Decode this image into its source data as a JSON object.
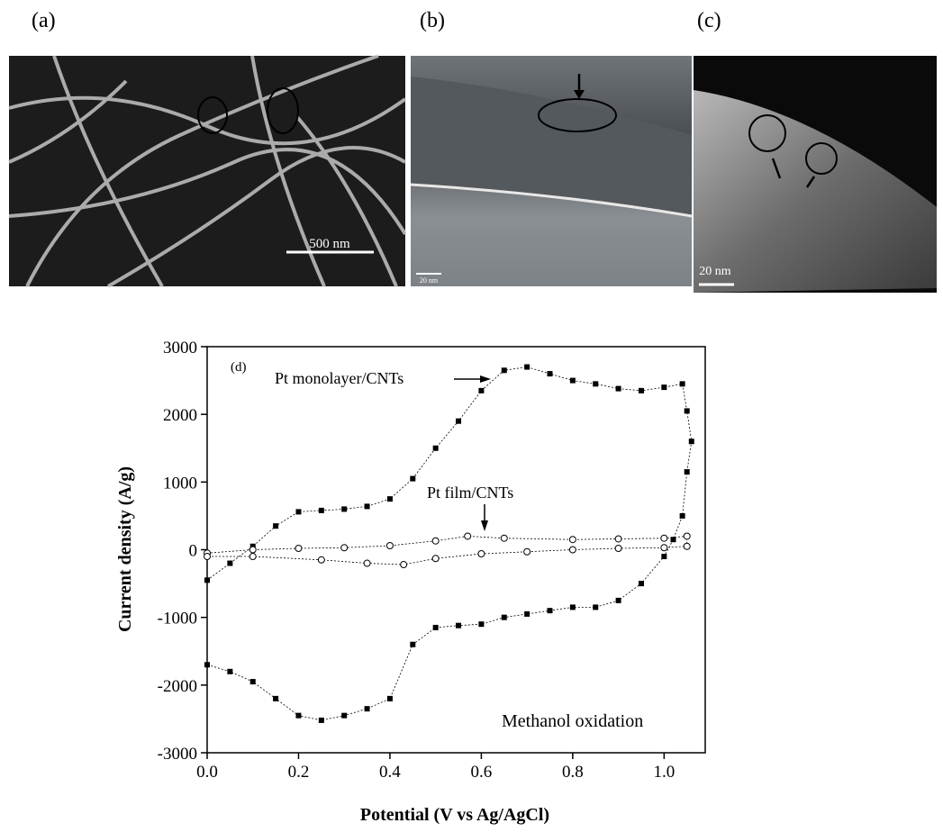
{
  "panels": [
    {
      "label": "(a)",
      "scale_bar": "500 nm"
    },
    {
      "label": "(b)",
      "scale_bar": "20 nm"
    },
    {
      "label": "(c)",
      "scale_bar": "20 nm"
    }
  ],
  "chart_data": {
    "type": "scatter",
    "panel_label": "(d)",
    "x_label": "Potential (V vs Ag/AgCl)",
    "y_label": "Current density (A/g)",
    "xlim": [
      0,
      1.09
    ],
    "ylim": [
      -3000,
      3000
    ],
    "xticks": [
      {
        "value": 0,
        "label": "0.0"
      },
      0.2,
      0.4,
      0.6,
      0.8,
      {
        "value": 1,
        "label": "1.0"
      }
    ],
    "yticks": [
      -3000,
      -2000,
      -1000,
      0,
      1000,
      2000,
      3000
    ],
    "annotations": [
      "Pt monolayer/CNTs",
      "Pt film/CNTs",
      "Methanol oxidation"
    ],
    "series": [
      {
        "name": "Pt monolayer/CNTs",
        "color": "#000000",
        "marker": "square",
        "x": [
          0,
          0.05,
          0.1,
          0.15,
          0.2,
          0.25,
          0.3,
          0.35,
          0.4,
          0.45,
          0.5,
          0.55,
          0.6,
          0.65,
          0.7,
          0.75,
          0.8,
          0.85,
          0.9,
          0.95,
          1.0,
          1.04,
          1.05,
          1.06,
          1.05,
          1.04,
          1.02,
          1.0,
          0.95,
          0.9,
          0.85,
          0.8,
          0.75,
          0.7,
          0.65,
          0.6,
          0.55,
          0.5,
          0.45,
          0.4,
          0.35,
          0.3,
          0.25,
          0.2,
          0.15,
          0.1,
          0.05,
          0
        ],
        "values": [
          -450,
          -200,
          50,
          350,
          560,
          580,
          600,
          640,
          750,
          1050,
          1500,
          1900,
          2350,
          2650,
          2700,
          2600,
          2500,
          2450,
          2380,
          2350,
          2400,
          2450,
          2050,
          1600,
          1150,
          500,
          150,
          -100,
          -500,
          -750,
          -850,
          -850,
          -900,
          -950,
          -1000,
          -1100,
          -1120,
          -1150,
          -1400,
          -2200,
          -2350,
          -2450,
          -2520,
          -2450,
          -2200,
          -1950,
          -1800,
          -1700
        ]
      },
      {
        "name": "Pt film/CNTs",
        "color": "#000000",
        "marker": "circle",
        "x": [
          0,
          0.1,
          0.2,
          0.3,
          0.4,
          0.5,
          0.57,
          0.65,
          0.8,
          0.9,
          1.0,
          1.05,
          1.05,
          1.0,
          0.9,
          0.8,
          0.7,
          0.6,
          0.5,
          0.43,
          0.35,
          0.25,
          0.1,
          0
        ],
        "values": [
          -50,
          0,
          20,
          30,
          60,
          130,
          200,
          170,
          150,
          160,
          170,
          200,
          50,
          30,
          20,
          0,
          -30,
          -60,
          -130,
          -220,
          -200,
          -150,
          -100,
          -100
        ]
      }
    ]
  }
}
